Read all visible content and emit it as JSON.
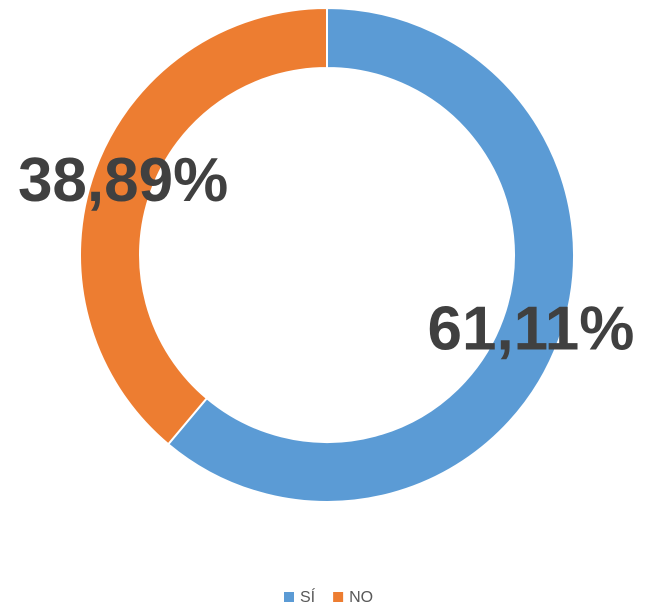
{
  "chart_data": {
    "type": "donut",
    "categories": [
      "SÍ",
      "NO"
    ],
    "values": [
      61.11,
      38.89
    ],
    "value_labels": [
      "61,11%",
      "38,89%"
    ],
    "colors": [
      "#5b9bd5",
      "#ed7d31"
    ],
    "legend": "bottom"
  }
}
